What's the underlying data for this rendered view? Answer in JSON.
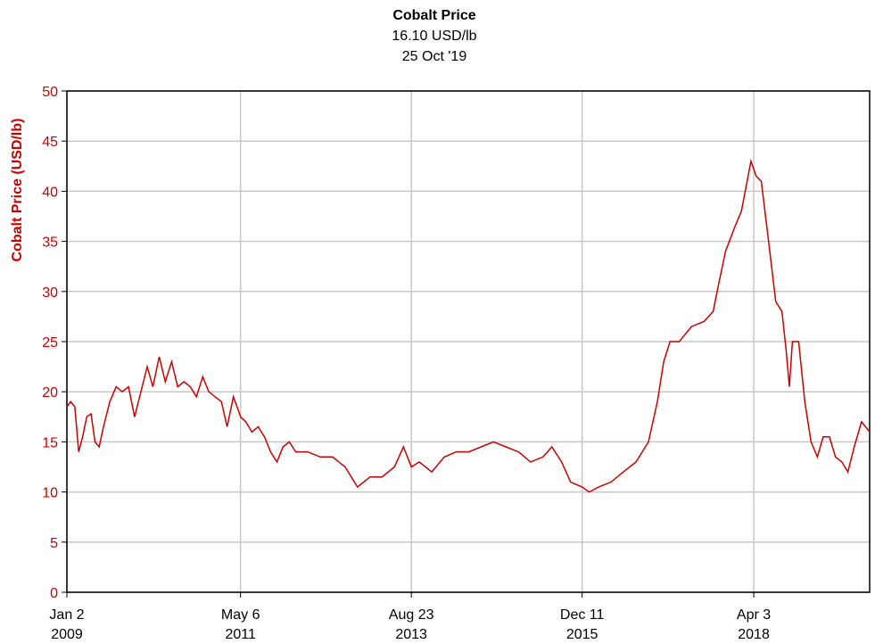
{
  "chart_data": {
    "type": "line",
    "title": "Cobalt Price",
    "subtitle": "16.10 USD/lb",
    "date_label": "25 Oct '19",
    "y_label": "Cobalt Price (USD/lb)",
    "x": [
      "2009-01-02",
      "2009-01-20",
      "2009-02-10",
      "2009-03-01",
      "2009-03-20",
      "2009-04-10",
      "2009-05-01",
      "2009-05-20",
      "2009-06-10",
      "2009-07-01",
      "2009-08-01",
      "2009-09-01",
      "2009-10-01",
      "2009-11-01",
      "2009-12-01",
      "2010-01-01",
      "2010-02-01",
      "2010-03-01",
      "2010-04-01",
      "2010-05-01",
      "2010-06-01",
      "2010-07-01",
      "2010-08-01",
      "2010-09-01",
      "2010-10-01",
      "2010-11-01",
      "2010-12-01",
      "2011-01-01",
      "2011-02-01",
      "2011-03-01",
      "2011-04-01",
      "2011-05-06",
      "2011-06-01",
      "2011-07-01",
      "2011-08-01",
      "2011-09-01",
      "2011-10-01",
      "2011-11-01",
      "2011-12-01",
      "2012-01-01",
      "2012-02-01",
      "2012-04-01",
      "2012-06-01",
      "2012-08-01",
      "2012-10-01",
      "2012-12-01",
      "2013-02-01",
      "2013-04-01",
      "2013-06-01",
      "2013-07-15",
      "2013-08-23",
      "2013-10-01",
      "2013-12-01",
      "2014-02-01",
      "2014-04-01",
      "2014-06-01",
      "2014-08-01",
      "2014-10-01",
      "2014-12-01",
      "2015-02-01",
      "2015-04-01",
      "2015-06-01",
      "2015-07-15",
      "2015-09-01",
      "2015-10-15",
      "2015-12-11",
      "2016-01-15",
      "2016-03-01",
      "2016-05-01",
      "2016-07-01",
      "2016-09-01",
      "2016-11-01",
      "2016-12-15",
      "2017-01-15",
      "2017-02-15",
      "2017-04-01",
      "2017-06-01",
      "2017-08-01",
      "2017-09-15",
      "2017-10-15",
      "2017-11-15",
      "2018-01-01",
      "2018-02-01",
      "2018-03-20",
      "2018-04-15",
      "2018-05-10",
      "2018-06-15",
      "2018-07-20",
      "2018-08-20",
      "2018-09-10",
      "2018-09-25",
      "2018-10-10",
      "2018-11-10",
      "2018-12-10",
      "2019-01-10",
      "2019-02-10",
      "2019-03-10",
      "2019-04-10",
      "2019-05-10",
      "2019-06-10",
      "2019-07-10",
      "2019-08-10",
      "2019-09-15",
      "2019-10-25"
    ],
    "series": [
      {
        "name": "Cobalt Price",
        "color": "#cc0000",
        "values": [
          18.5,
          19,
          18.5,
          14,
          15.5,
          17.5,
          17.8,
          15,
          14.5,
          16.5,
          19,
          20.5,
          20,
          20.5,
          17.5,
          20,
          22.5,
          20.5,
          23.5,
          21,
          23,
          20.5,
          21,
          20.5,
          19.5,
          21.5,
          20,
          19.5,
          19,
          16.5,
          19.5,
          17.5,
          17,
          16,
          16.5,
          15.5,
          14,
          13,
          14.5,
          15,
          14,
          14,
          13.5,
          13.5,
          12.5,
          10.5,
          11.5,
          11.5,
          12.5,
          14.5,
          12.5,
          13,
          12,
          13.5,
          14,
          14,
          14.5,
          15,
          14.5,
          14,
          13,
          13.5,
          14.5,
          13,
          11,
          10.5,
          10,
          10.5,
          11,
          12,
          13,
          15,
          19,
          23,
          25,
          25,
          26.5,
          27,
          28,
          31,
          34,
          36.5,
          38,
          43,
          41.5,
          41,
          35,
          29,
          28,
          24,
          20.5,
          25,
          25,
          19,
          15,
          13.5,
          15.5,
          15.5,
          13.5,
          13,
          12,
          14.5,
          17,
          16
        ]
      }
    ],
    "xlim": [
      "2009-01-02",
      "2019-10-25"
    ],
    "xticks": [
      {
        "value": "2009-01-02",
        "label": "Jan 2\n2009"
      },
      {
        "value": "2011-05-06",
        "label": "May 6\n2011"
      },
      {
        "value": "2013-08-23",
        "label": "Aug 23\n2013"
      },
      {
        "value": "2015-12-11",
        "label": "Dec 11\n2015"
      },
      {
        "value": "2018-04-03",
        "label": "Apr 3\n2018"
      }
    ],
    "ylim": [
      0,
      50
    ],
    "yticks": [
      0,
      5,
      10,
      15,
      20,
      25,
      30,
      35,
      40,
      45,
      50
    ],
    "grid": true
  }
}
